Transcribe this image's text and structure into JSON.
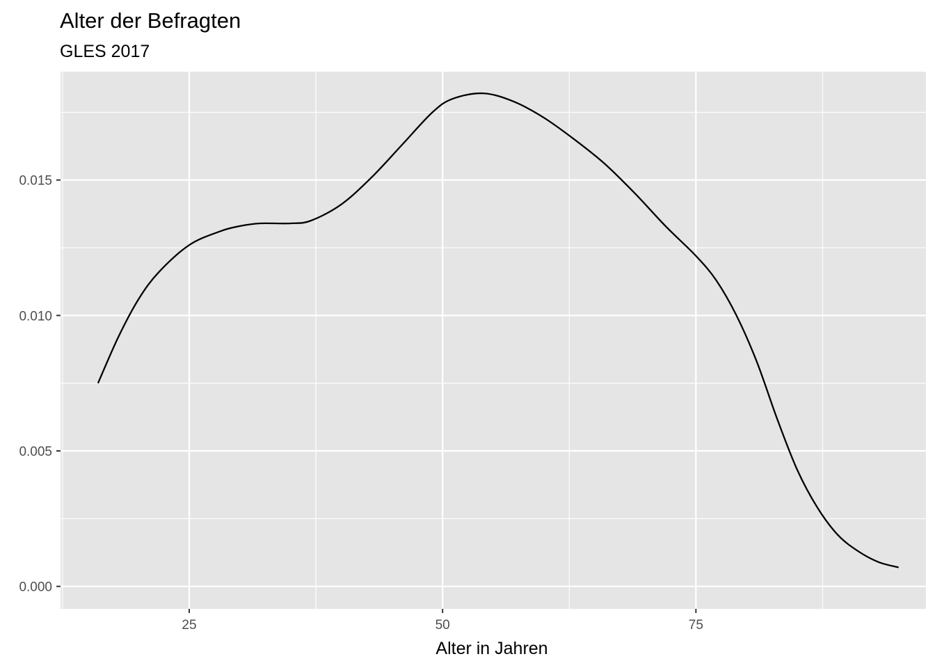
{
  "chart_data": {
    "type": "line",
    "title": "Alter der Befragten",
    "subtitle": "GLES 2017",
    "xlabel": "Alter in Jahren",
    "ylabel": "",
    "xlim": [
      12.3,
      97.7
    ],
    "ylim": [
      -0.00083,
      0.019
    ],
    "x_ticks": [
      25,
      50,
      75
    ],
    "x_tick_labels": [
      "25",
      "50",
      "75"
    ],
    "x_minor_ticks": [
      12.5,
      37.5,
      62.5,
      87.5
    ],
    "y_ticks": [
      0.0,
      0.005,
      0.01,
      0.015
    ],
    "y_tick_labels": [
      "0.000",
      "0.005",
      "0.010",
      "0.015"
    ],
    "y_minor_ticks": [
      0.0025,
      0.0075,
      0.0125,
      0.0175
    ],
    "grid": true,
    "legend": "none",
    "colors": {
      "panel_background": "#E5E5E5",
      "grid_line": "#FFFFFF",
      "line": "#000000",
      "tick_label": "#4D4D4D",
      "axis_tick": "#333333"
    },
    "series": [
      {
        "x": [
          16,
          18,
          20,
          22,
          25,
          28,
          30,
          32,
          35,
          37,
          40,
          43,
          46,
          49,
          51,
          54,
          57,
          60,
          63,
          66,
          69,
          72,
          75,
          77,
          79,
          81,
          83,
          85,
          87,
          89,
          91,
          93,
          95
        ],
        "values": [
          0.0075,
          0.0092,
          0.0106,
          0.0116,
          0.0126,
          0.0131,
          0.0133,
          0.0134,
          0.0134,
          0.0135,
          0.0141,
          0.0151,
          0.0163,
          0.0175,
          0.018,
          0.0182,
          0.0179,
          0.0173,
          0.0165,
          0.0156,
          0.0145,
          0.0133,
          0.0122,
          0.0113,
          0.01,
          0.0083,
          0.0062,
          0.0043,
          0.0029,
          0.0019,
          0.0013,
          0.0009,
          0.0007
        ]
      }
    ]
  }
}
